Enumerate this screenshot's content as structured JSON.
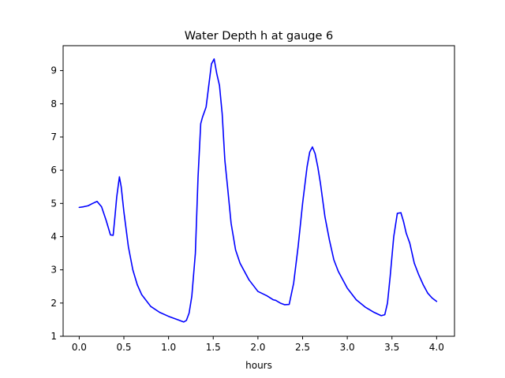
{
  "chart_data": {
    "type": "line",
    "title": "Water Depth h at gauge 6",
    "xlabel": "hours",
    "ylabel": "",
    "xlim": [
      -0.18,
      4.2
    ],
    "ylim": [
      1,
      9.75
    ],
    "grid": false,
    "legend": "none",
    "x_ticks": [
      0.0,
      0.5,
      1.0,
      1.5,
      2.0,
      2.5,
      3.0,
      3.5,
      4.0
    ],
    "x_tick_labels": [
      "0.0",
      "0.5",
      "1.0",
      "1.5",
      "2.0",
      "2.5",
      "3.0",
      "3.5",
      "4.0"
    ],
    "y_ticks": [
      1,
      2,
      3,
      4,
      5,
      6,
      7,
      8,
      9
    ],
    "y_tick_labels": [
      "1",
      "2",
      "3",
      "4",
      "5",
      "6",
      "7",
      "8",
      "9"
    ],
    "series": [
      {
        "color": "#0000ff",
        "x": [
          0.0,
          0.05,
          0.1,
          0.15,
          0.2,
          0.25,
          0.3,
          0.35,
          0.38,
          0.4,
          0.42,
          0.45,
          0.47,
          0.5,
          0.55,
          0.6,
          0.65,
          0.7,
          0.8,
          0.9,
          1.0,
          1.1,
          1.17,
          1.2,
          1.23,
          1.26,
          1.3,
          1.33,
          1.36,
          1.38,
          1.42,
          1.45,
          1.48,
          1.51,
          1.54,
          1.57,
          1.6,
          1.63,
          1.66,
          1.7,
          1.75,
          1.8,
          1.9,
          2.0,
          2.1,
          2.17,
          2.2,
          2.25,
          2.3,
          2.35,
          2.4,
          2.45,
          2.5,
          2.55,
          2.58,
          2.61,
          2.64,
          2.67,
          2.7,
          2.75,
          2.8,
          2.85,
          2.9,
          3.0,
          3.1,
          3.2,
          3.3,
          3.38,
          3.42,
          3.45,
          3.48,
          3.52,
          3.56,
          3.6,
          3.63,
          3.66,
          3.7,
          3.75,
          3.8,
          3.85,
          3.9,
          3.95,
          4.0
        ],
        "y": [
          4.88,
          4.9,
          4.93,
          5.0,
          5.06,
          4.9,
          4.5,
          4.05,
          4.04,
          4.6,
          5.2,
          5.8,
          5.5,
          4.75,
          3.7,
          3.0,
          2.55,
          2.25,
          1.9,
          1.72,
          1.6,
          1.5,
          1.43,
          1.48,
          1.7,
          2.2,
          3.5,
          5.8,
          7.4,
          7.6,
          7.9,
          8.55,
          9.2,
          9.35,
          8.9,
          8.55,
          7.7,
          6.3,
          5.5,
          4.4,
          3.6,
          3.2,
          2.7,
          2.35,
          2.22,
          2.1,
          2.08,
          2.0,
          1.95,
          1.96,
          2.6,
          3.7,
          5.0,
          6.1,
          6.55,
          6.7,
          6.5,
          6.1,
          5.6,
          4.6,
          3.9,
          3.3,
          2.95,
          2.45,
          2.1,
          1.88,
          1.72,
          1.62,
          1.65,
          2.0,
          2.8,
          4.0,
          4.7,
          4.72,
          4.45,
          4.1,
          3.8,
          3.2,
          2.85,
          2.55,
          2.3,
          2.15,
          2.05
        ]
      }
    ]
  }
}
